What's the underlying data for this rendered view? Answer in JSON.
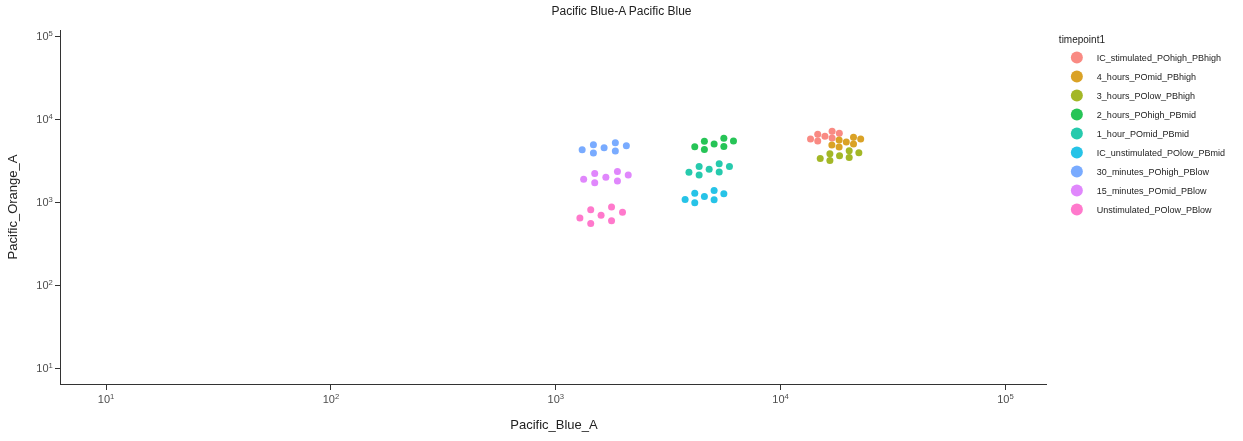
{
  "chart_data": {
    "type": "scatter",
    "title": "Pacific Blue-A Pacific Blue",
    "xlabel": "Pacific_Blue_A",
    "ylabel": "Pacific_Orange_A",
    "legend_title": "timepoint1",
    "legend": "right",
    "log": "xy",
    "marker": "circle",
    "xlim": [
      6.3,
      153000
    ],
    "ylim": [
      6.5,
      120000
    ],
    "xticks": [
      {
        "value": 10,
        "label": "10$^{1}$"
      },
      {
        "value": 100,
        "label": "10$^{2}$"
      },
      {
        "value": 1000,
        "label": "10$^{3}$"
      },
      {
        "value": 10000,
        "label": "10$^{4}$"
      },
      {
        "value": 100000,
        "label": "10$^{5}$"
      }
    ],
    "yticks": [
      {
        "value": 10,
        "label": "10$^{1}$"
      },
      {
        "value": 100,
        "label": "10$^{2}$"
      },
      {
        "value": 1000,
        "label": "10$^{3}$"
      },
      {
        "value": 10000,
        "label": "10$^{4}$"
      },
      {
        "value": 100000,
        "label": "10$^{5}$"
      }
    ],
    "series": [
      {
        "name": "IC_stimulated_POhigh_PBhigh",
        "color": "#f8766d",
        "x": [
          13580,
          14620,
          14620,
          15740,
          16940,
          16940,
          18240
        ],
        "values": [
          5820,
          6660,
          5520,
          6310,
          7220,
          5980,
          6840
        ]
      },
      {
        "name": "4_hours_POmid_PBhigh",
        "color": "#d39200",
        "x": [
          16900,
          18200,
          18200,
          19590,
          21090,
          21090,
          22700
        ],
        "values": [
          4940,
          5660,
          4680,
          5360,
          6130,
          5080,
          5810
        ]
      },
      {
        "name": "3_hours_POlow_PBhigh",
        "color": "#93aa00",
        "x": [
          15000,
          16560,
          16560,
          18280,
          20180,
          20180,
          22280
        ],
        "values": [
          3390,
          3880,
          3210,
          3670,
          4200,
          3480,
          3980
        ]
      },
      {
        "name": "2_hours_POhigh_PBmid",
        "color": "#00ba38",
        "x": [
          4150,
          4580,
          4580,
          5060,
          5590,
          5590,
          6170
        ],
        "values": [
          4690,
          5480,
          4350,
          5080,
          5940,
          4720,
          5510
        ]
      },
      {
        "name": "1_hour_POmid_PBmid",
        "color": "#00c19f",
        "x": [
          3910,
          4340,
          4340,
          4810,
          5330,
          5330,
          5920
        ],
        "values": [
          2320,
          2710,
          2150,
          2510,
          2940,
          2330,
          2720
        ]
      },
      {
        "name": "IC_unstimulated_POlow_PBmid",
        "color": "#00b9e3",
        "x": [
          3760,
          4150,
          4150,
          4580,
          5060,
          5060,
          5590
        ],
        "values": [
          1090,
          1290,
          992,
          1180,
          1400,
          1080,
          1280
        ]
      },
      {
        "name": "30_minutes_POhigh_PBlow",
        "color": "#619cff",
        "x": [
          1310,
          1470,
          1470,
          1640,
          1840,
          1840,
          2060
        ],
        "values": [
          4320,
          4980,
          3950,
          4560,
          5260,
          4180,
          4820
        ]
      },
      {
        "name": "15_minutes_POmid_PBlow",
        "color": "#db72fb",
        "x": [
          1330,
          1490,
          1490,
          1670,
          1880,
          1880,
          2100
        ],
        "values": [
          1910,
          2240,
          1730,
          2020,
          2370,
          1820,
          2140
        ]
      },
      {
        "name": "Unstimulated_POlow_PBlow",
        "color": "#ff61c3",
        "x": [
          1280,
          1430,
          1430,
          1590,
          1770,
          1770,
          1980
        ],
        "values": [
          649,
          818,
          558,
          703,
          886,
          605,
          762
        ]
      }
    ]
  }
}
